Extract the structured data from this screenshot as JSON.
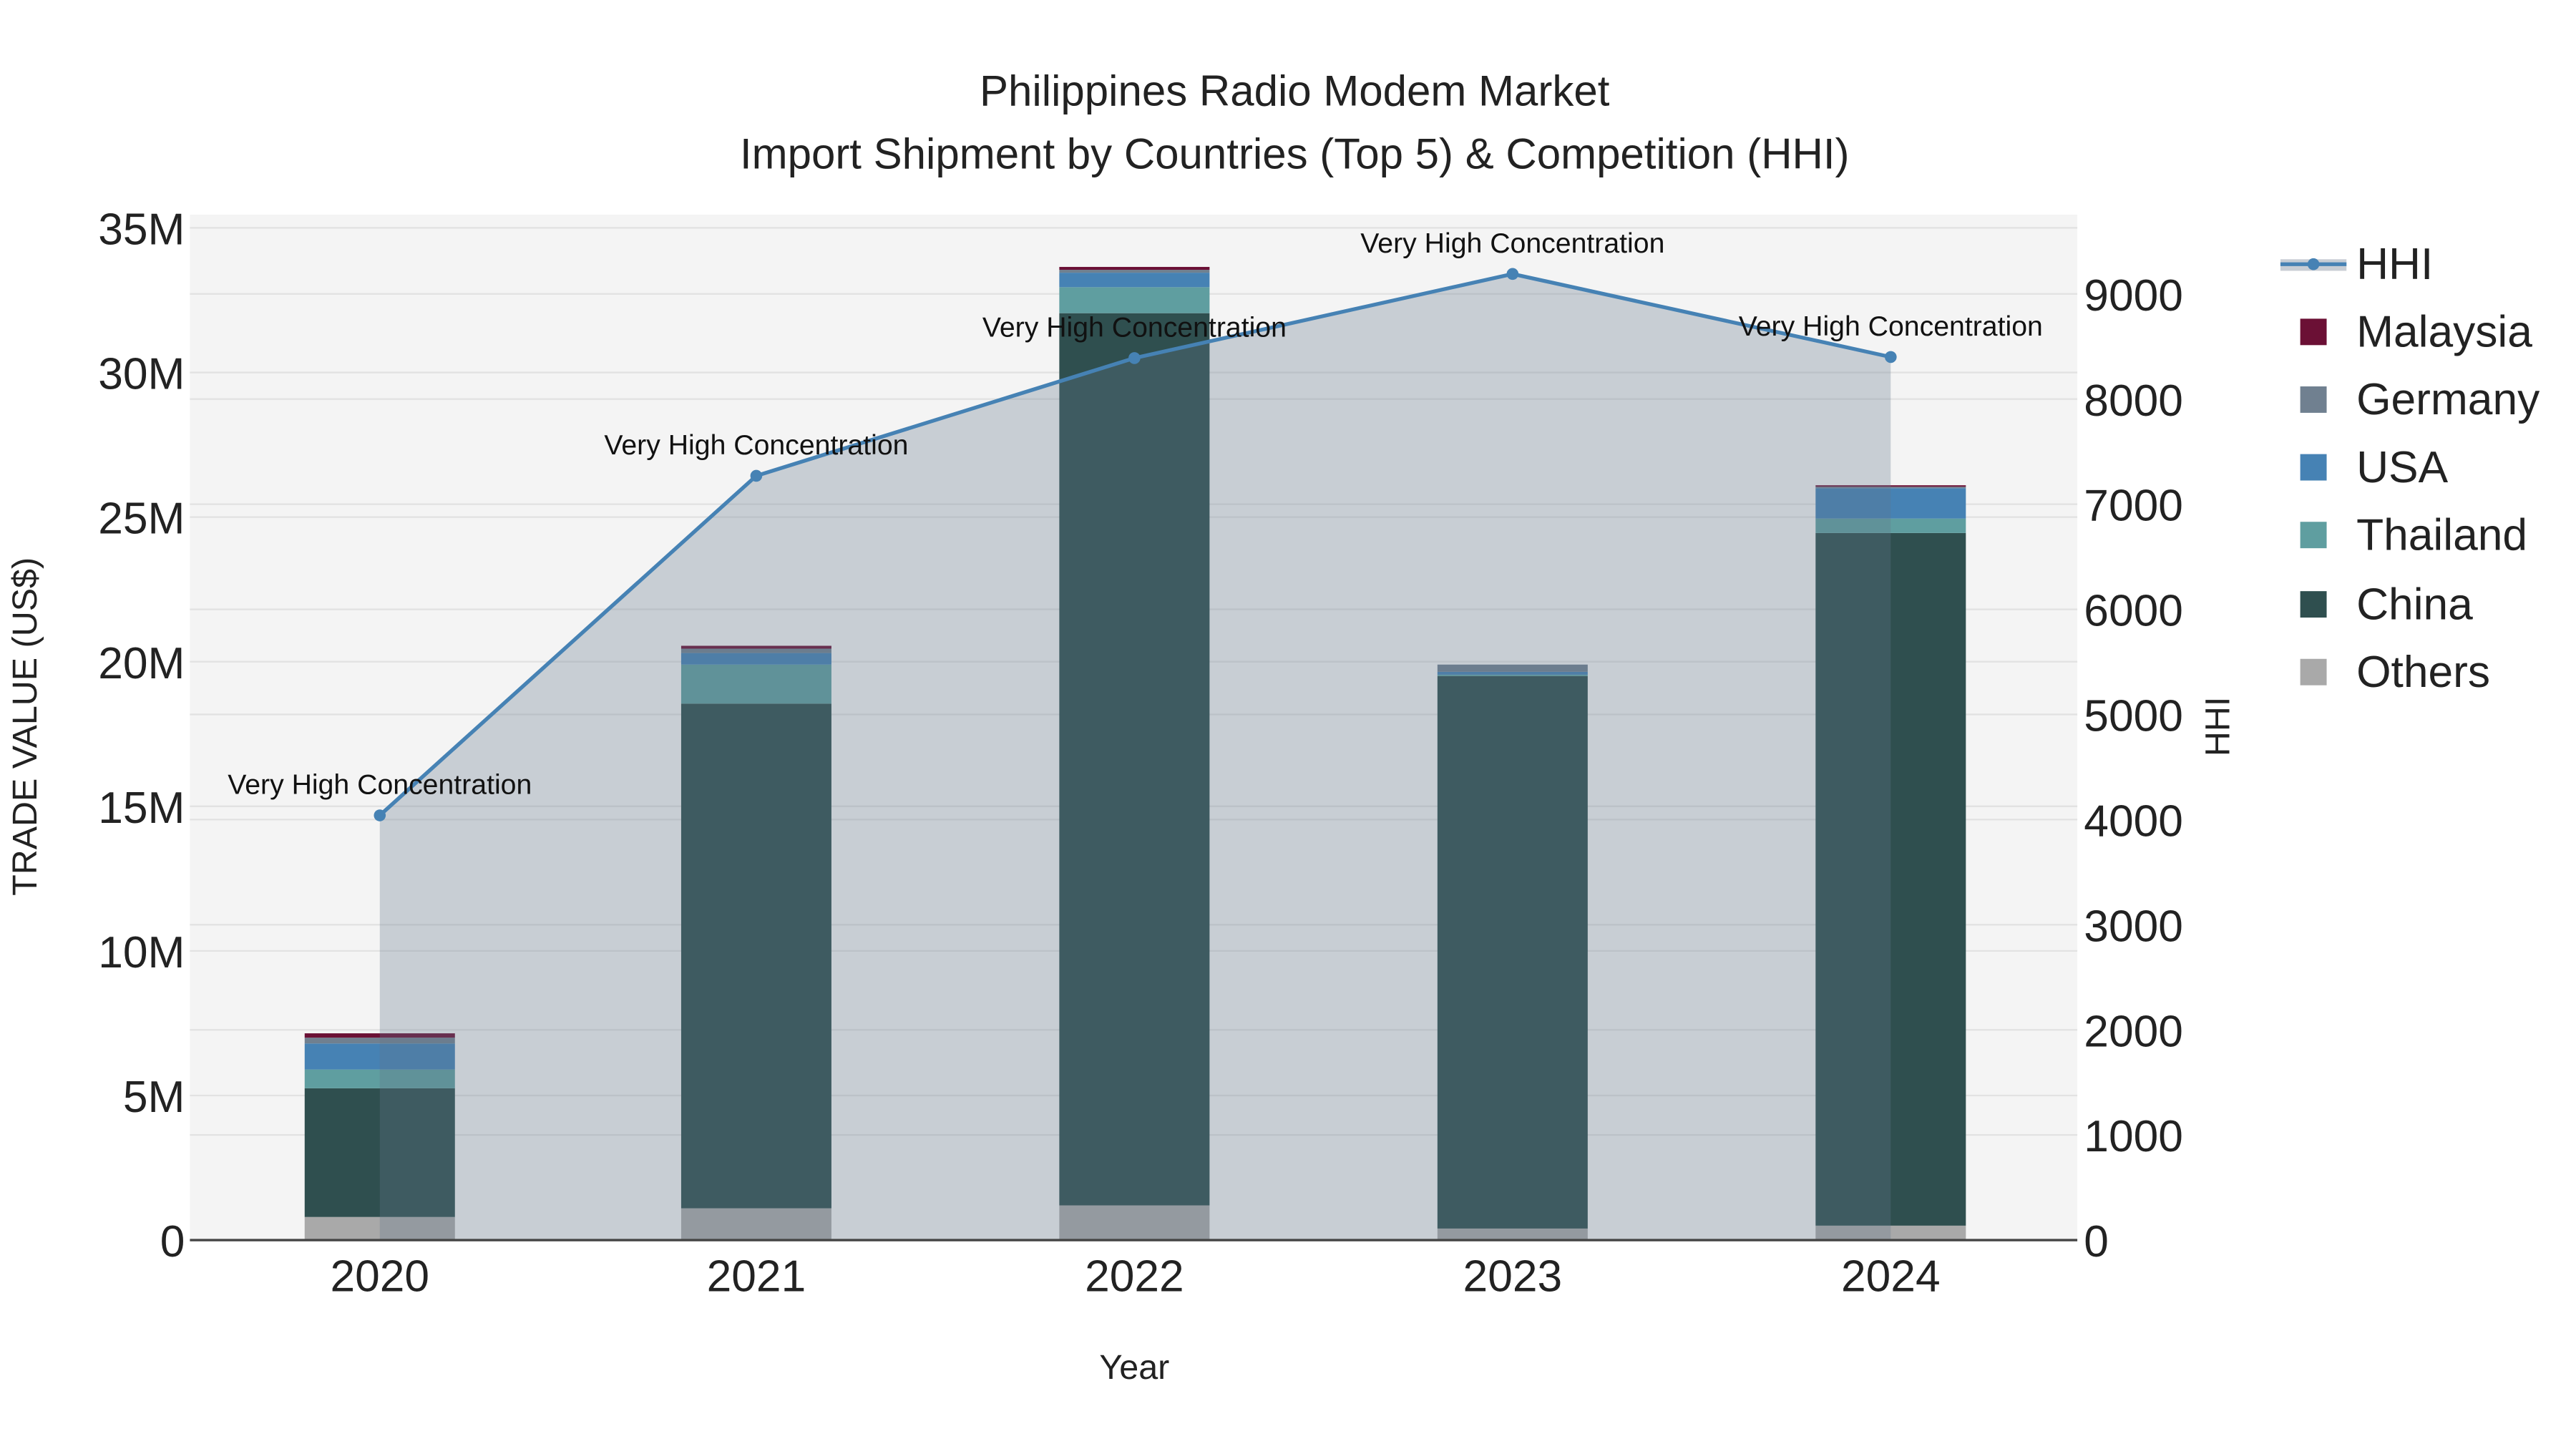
{
  "chart_data": {
    "type": "bar",
    "title": "Philippines Radio Modem Market",
    "subtitle": "Import Shipment by Countries (Top 5) & Competition (HHI)",
    "xlabel": "Year",
    "ylabel": "TRADE VALUE (US$)",
    "y2label": "HHI",
    "categories": [
      "2020",
      "2021",
      "2022",
      "2023",
      "2024"
    ],
    "ylim": [
      0,
      35000000
    ],
    "y_ticks": [
      0,
      5000000,
      10000000,
      15000000,
      20000000,
      25000000,
      30000000,
      35000000
    ],
    "y_tick_labels": [
      "0",
      "5M",
      "10M",
      "15M",
      "20M",
      "25M",
      "30M",
      "35M"
    ],
    "y2lim": [
      0,
      9700
    ],
    "y2_ticks": [
      0,
      1000,
      2000,
      3000,
      4000,
      5000,
      6000,
      7000,
      8000,
      9000
    ],
    "y2_tick_labels": [
      "0",
      "1000",
      "2000",
      "3000",
      "4000",
      "5000",
      "6000",
      "7000",
      "8000",
      "9000"
    ],
    "stacked": true,
    "series": [
      {
        "name": "Others",
        "color": "#a9a9a9",
        "values": [
          800000,
          1100000,
          1200000,
          400000,
          500000
        ]
      },
      {
        "name": "China",
        "color": "#2f4f4f",
        "values": [
          4450000,
          17450000,
          30850000,
          19100000,
          23950000
        ]
      },
      {
        "name": "Thailand",
        "color": "#5f9ea0",
        "values": [
          650000,
          1350000,
          900000,
          50000,
          500000
        ]
      },
      {
        "name": "USA",
        "color": "#4682b4",
        "values": [
          900000,
          400000,
          500000,
          100000,
          1050000
        ]
      },
      {
        "name": "Germany",
        "color": "#708090",
        "values": [
          200000,
          150000,
          100000,
          250000,
          50000
        ]
      },
      {
        "name": "Malaysia",
        "color": "#6b1035",
        "values": [
          150000,
          100000,
          100000,
          0,
          50000
        ]
      }
    ],
    "hhi": {
      "name": "HHI",
      "color": "#4682b4",
      "values": [
        4040,
        7270,
        8390,
        9190,
        8400
      ],
      "annotations": [
        "Very High Concentration",
        "Very High Concentration",
        "Very High Concentration",
        "Very High Concentration",
        "Very High Concentration"
      ]
    },
    "legend": {
      "placement": "right",
      "order": [
        "HHI",
        "Malaysia",
        "Germany",
        "USA",
        "Thailand",
        "China",
        "Others"
      ]
    },
    "grid": true
  }
}
